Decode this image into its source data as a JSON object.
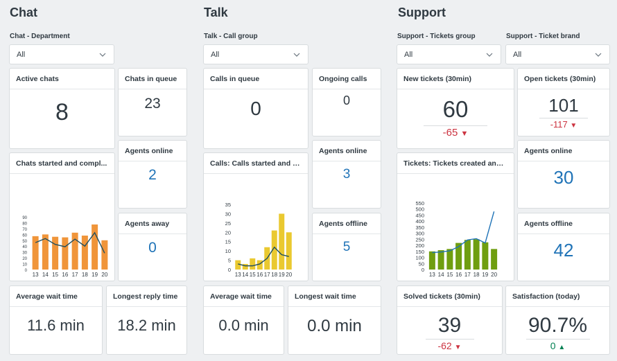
{
  "sections": {
    "chat": "Chat",
    "talk": "Talk",
    "support": "Support"
  },
  "filters": {
    "chat_department": {
      "label": "Chat - Department",
      "value": "All"
    },
    "talk_call_group": {
      "label": "Talk - Call group",
      "value": "All"
    },
    "support_tickets_group": {
      "label": "Support - Tickets group",
      "value": "All"
    },
    "support_ticket_brand": {
      "label": "Support - Ticket brand",
      "value": "All"
    }
  },
  "chat": {
    "active_chats": {
      "title": "Active chats",
      "value": "8"
    },
    "chats_in_queue": {
      "title": "Chats in queue",
      "value": "23"
    },
    "agents_online": {
      "title": "Agents online",
      "value": "2"
    },
    "agents_away": {
      "title": "Agents away",
      "value": "0"
    },
    "chart_title": "Chats started and compl...",
    "avg_wait": {
      "title": "Average wait time",
      "value": "11.6 min"
    },
    "longest_reply": {
      "title": "Longest reply time",
      "value": "18.2 min"
    }
  },
  "talk": {
    "calls_in_queue": {
      "title": "Calls in queue",
      "value": "0"
    },
    "ongoing_calls": {
      "title": "Ongoing calls",
      "value": "0"
    },
    "agents_online": {
      "title": "Agents online",
      "value": "3"
    },
    "agents_offline": {
      "title": "Agents offline",
      "value": "5"
    },
    "chart_title": "Calls: Calls started and c...",
    "avg_wait": {
      "title": "Average wait time",
      "value": "0.0 min"
    },
    "longest_wait": {
      "title": "Longest wait time",
      "value": "0.0 min"
    }
  },
  "support": {
    "new_tickets": {
      "title": "New tickets (30min)",
      "value": "60",
      "delta": "-65"
    },
    "open_tickets": {
      "title": "Open tickets (30min)",
      "value": "101",
      "delta": "-117"
    },
    "agents_online": {
      "title": "Agents online",
      "value": "30"
    },
    "agents_offline": {
      "title": "Agents offline",
      "value": "42"
    },
    "chart_title": "Tickets: Tickets created and ...",
    "solved_tickets": {
      "title": "Solved tickets (30min)",
      "value": "39",
      "delta": "-62"
    },
    "satisfaction": {
      "title": "Satisfaction (today)",
      "value": "90.7%",
      "delta": "0"
    }
  },
  "colors": {
    "chat_bar": "#f0953a",
    "talk_bar": "#eac930",
    "support_bar": "#6f9e10",
    "line": "#1f4e5f",
    "support_line": "#1f73b7",
    "negative": "#cc3340",
    "positive": "#038153",
    "accent_blue": "#1f73b7"
  },
  "chart_data": [
    {
      "type": "bar",
      "title": "Chats started and compl...",
      "categories": [
        "13",
        "14",
        "15",
        "16",
        "17",
        "18",
        "19",
        "20"
      ],
      "series": [
        {
          "values": [
            57,
            60,
            56,
            55,
            63,
            58,
            77,
            50
          ]
        },
        {
          "type": "line",
          "values": [
            46,
            53,
            43,
            39,
            52,
            40,
            63,
            28
          ]
        }
      ],
      "yticks": [
        "0",
        "10",
        "20",
        "30",
        "40",
        "50",
        "60",
        "70",
        "80",
        "90"
      ],
      "ylim": [
        0,
        90
      ]
    },
    {
      "type": "bar",
      "title": "Calls: Calls started and c...",
      "categories": [
        "13",
        "14",
        "15",
        "16",
        "17",
        "18",
        "19",
        "20"
      ],
      "series": [
        {
          "values": [
            5,
            3,
            6,
            5,
            12,
            21,
            30,
            20
          ]
        },
        {
          "type": "line",
          "values": [
            3,
            2,
            2,
            3,
            6,
            12,
            8,
            7
          ]
        }
      ],
      "yticks": [
        "0",
        "5",
        "10",
        "15",
        "20",
        "25",
        "30",
        "35"
      ],
      "ylim": [
        0,
        35
      ]
    },
    {
      "type": "bar",
      "title": "Tickets: Tickets created and ...",
      "categories": [
        "13",
        "14",
        "15",
        "16",
        "17",
        "18",
        "19",
        "20"
      ],
      "series": [
        {
          "values": [
            150,
            160,
            170,
            220,
            245,
            250,
            225,
            170
          ]
        },
        {
          "type": "line",
          "values": [
            140,
            145,
            155,
            190,
            245,
            255,
            220,
            480
          ]
        }
      ],
      "yticks": [
        "0",
        "50",
        "100",
        "150",
        "200",
        "250",
        "300",
        "350",
        "400",
        "450",
        "500",
        "550"
      ],
      "ylim": [
        0,
        550
      ]
    }
  ]
}
